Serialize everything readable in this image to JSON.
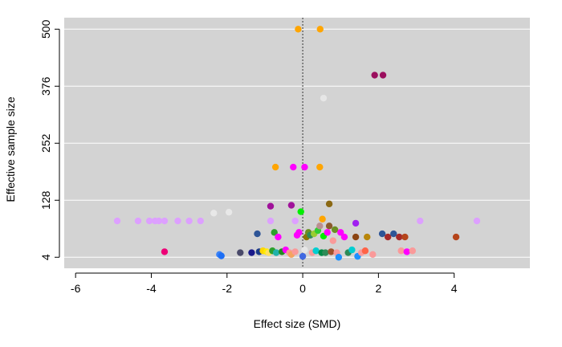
{
  "chart_data": {
    "type": "scatter",
    "title": "",
    "xlabel": "Effect size (SMD)",
    "ylabel": "Effective sample size",
    "xlim": [
      -6.3,
      6.0
    ],
    "ylim": [
      -20,
      525
    ],
    "xticks": [
      -6,
      -4,
      -2,
      0,
      2,
      4
    ],
    "xtick_labels": [
      "-6",
      "-4",
      "-2",
      "0",
      "2",
      "4"
    ],
    "yticks": [
      4,
      128,
      252,
      376,
      500
    ],
    "ytick_labels": [
      "4",
      "128",
      "252",
      "376",
      "500"
    ],
    "grid": "horizontal",
    "reference_line_x": 0,
    "panel_color": "#d3d3d3",
    "points": [
      {
        "x": -0.12,
        "y": 500,
        "color": "#ffa500"
      },
      {
        "x": 0.46,
        "y": 500,
        "color": "#ffa500"
      },
      {
        "x": 1.9,
        "y": 400,
        "color": "#9b0f5e"
      },
      {
        "x": 2.12,
        "y": 400,
        "color": "#9b0f5e"
      },
      {
        "x": 0.55,
        "y": 350,
        "color": "#e6e6e6"
      },
      {
        "x": -0.72,
        "y": 200,
        "color": "#ffa500"
      },
      {
        "x": -0.25,
        "y": 200,
        "color": "#ff00ff"
      },
      {
        "x": 0.05,
        "y": 200,
        "color": "#ff00ff"
      },
      {
        "x": 0.45,
        "y": 200,
        "color": "#ffa500"
      },
      {
        "x": -0.85,
        "y": 115,
        "color": "#a0129a"
      },
      {
        "x": -0.3,
        "y": 117,
        "color": "#a0129a"
      },
      {
        "x": -0.05,
        "y": 103,
        "color": "#00ee00"
      },
      {
        "x": 0.7,
        "y": 120,
        "color": "#8b6914"
      },
      {
        "x": 0.52,
        "y": 87,
        "color": "#ffa500"
      },
      {
        "x": -2.35,
        "y": 100,
        "color": "#e8e8e8"
      },
      {
        "x": -1.95,
        "y": 102,
        "color": "#e8e8e8"
      },
      {
        "x": -4.9,
        "y": 83,
        "color": "#dda0ff"
      },
      {
        "x": -4.35,
        "y": 83,
        "color": "#dda0ff"
      },
      {
        "x": -4.05,
        "y": 83,
        "color": "#dda0ff"
      },
      {
        "x": -3.9,
        "y": 83,
        "color": "#dda0ff"
      },
      {
        "x": -3.8,
        "y": 83,
        "color": "#dda0ff"
      },
      {
        "x": -3.65,
        "y": 83,
        "color": "#dda0ff"
      },
      {
        "x": -3.3,
        "y": 83,
        "color": "#dda0ff"
      },
      {
        "x": -3.0,
        "y": 83,
        "color": "#dda0ff"
      },
      {
        "x": -2.7,
        "y": 83,
        "color": "#dda0ff"
      },
      {
        "x": -0.85,
        "y": 83,
        "color": "#dda0ff"
      },
      {
        "x": -0.2,
        "y": 83,
        "color": "#dda0ff"
      },
      {
        "x": 3.1,
        "y": 83,
        "color": "#dda0ff"
      },
      {
        "x": 4.6,
        "y": 83,
        "color": "#dda0ff"
      },
      {
        "x": 1.4,
        "y": 78,
        "color": "#a020f0"
      },
      {
        "x": -3.65,
        "y": 16,
        "color": "#ee0077"
      },
      {
        "x": -2.2,
        "y": 10,
        "color": "#3b82f6"
      },
      {
        "x": -2.15,
        "y": 7,
        "color": "#1e6ff5"
      },
      {
        "x": -1.65,
        "y": 14,
        "color": "#4a4a6a"
      },
      {
        "x": -1.35,
        "y": 14,
        "color": "#1a1a8a"
      },
      {
        "x": -1.2,
        "y": 55,
        "color": "#2e5597"
      },
      {
        "x": -1.15,
        "y": 16,
        "color": "#1a3a8a"
      },
      {
        "x": -1.05,
        "y": 18,
        "color": "#ffd700"
      },
      {
        "x": -0.95,
        "y": 16,
        "color": "#ffee00"
      },
      {
        "x": -0.9,
        "y": 14,
        "color": "#ffe060"
      },
      {
        "x": -0.8,
        "y": 18,
        "color": "#2ca02c"
      },
      {
        "x": -0.75,
        "y": 58,
        "color": "#2ca02c"
      },
      {
        "x": -0.7,
        "y": 14,
        "color": "#20b2aa"
      },
      {
        "x": -0.65,
        "y": 48,
        "color": "#ff00ff"
      },
      {
        "x": -0.55,
        "y": 16,
        "color": "#228b22"
      },
      {
        "x": -0.45,
        "y": 20,
        "color": "#ff00ff"
      },
      {
        "x": -0.35,
        "y": 14,
        "color": "#fa9a9a"
      },
      {
        "x": -0.3,
        "y": 10,
        "color": "#f4a460"
      },
      {
        "x": -0.2,
        "y": 16,
        "color": "#fa9a9a"
      },
      {
        "x": -0.15,
        "y": 52,
        "color": "#ff00ff"
      },
      {
        "x": -0.1,
        "y": 58,
        "color": "#ff00ff"
      },
      {
        "x": 0.0,
        "y": 6,
        "color": "#4169e1"
      },
      {
        "x": 0.05,
        "y": 20,
        "color": "#e6e6e6"
      },
      {
        "x": 0.1,
        "y": 48,
        "color": "#8b7500"
      },
      {
        "x": 0.15,
        "y": 58,
        "color": "#6b8e23"
      },
      {
        "x": 0.2,
        "y": 52,
        "color": "#2e8b57"
      },
      {
        "x": 0.25,
        "y": 14,
        "color": "#fa9a9a"
      },
      {
        "x": 0.3,
        "y": 55,
        "color": "#9acd32"
      },
      {
        "x": 0.35,
        "y": 18,
        "color": "#00ced1"
      },
      {
        "x": 0.4,
        "y": 62,
        "color": "#32cd32"
      },
      {
        "x": 0.45,
        "y": 72,
        "color": "#bc8f8f"
      },
      {
        "x": 0.5,
        "y": 14,
        "color": "#008b45"
      },
      {
        "x": 0.55,
        "y": 50,
        "color": "#00ee00"
      },
      {
        "x": 0.6,
        "y": 14,
        "color": "#2e8b57"
      },
      {
        "x": 0.65,
        "y": 58,
        "color": "#ff00ff"
      },
      {
        "x": 0.7,
        "y": 72,
        "color": "#8b5a2b"
      },
      {
        "x": 0.75,
        "y": 16,
        "color": "#a0522d"
      },
      {
        "x": 0.8,
        "y": 40,
        "color": "#fa9a9a"
      },
      {
        "x": 0.85,
        "y": 64,
        "color": "#6b8e23"
      },
      {
        "x": 0.9,
        "y": 14,
        "color": "#fa9a9a"
      },
      {
        "x": 0.95,
        "y": 4,
        "color": "#1e90ff"
      },
      {
        "x": 1.0,
        "y": 58,
        "color": "#ff00ff"
      },
      {
        "x": 1.1,
        "y": 48,
        "color": "#ff00ff"
      },
      {
        "x": 1.2,
        "y": 14,
        "color": "#2e8b57"
      },
      {
        "x": 1.3,
        "y": 20,
        "color": "#00ced1"
      },
      {
        "x": 1.4,
        "y": 48,
        "color": "#8b4513"
      },
      {
        "x": 1.45,
        "y": 6,
        "color": "#1e90ff"
      },
      {
        "x": 1.55,
        "y": 14,
        "color": "#fa9a9a"
      },
      {
        "x": 1.65,
        "y": 18,
        "color": "#ff6347"
      },
      {
        "x": 1.7,
        "y": 48,
        "color": "#b8860b"
      },
      {
        "x": 1.85,
        "y": 10,
        "color": "#fa9a9a"
      },
      {
        "x": 2.1,
        "y": 55,
        "color": "#2e5597"
      },
      {
        "x": 2.25,
        "y": 48,
        "color": "#a52a2a"
      },
      {
        "x": 2.4,
        "y": 55,
        "color": "#2e5597"
      },
      {
        "x": 2.55,
        "y": 48,
        "color": "#a52a2a"
      },
      {
        "x": 2.6,
        "y": 18,
        "color": "#fa9a9a"
      },
      {
        "x": 2.7,
        "y": 48,
        "color": "#b5451b"
      },
      {
        "x": 2.75,
        "y": 16,
        "color": "#ff00ff"
      },
      {
        "x": 2.9,
        "y": 18,
        "color": "#fa9a9a"
      },
      {
        "x": 4.05,
        "y": 48,
        "color": "#b5451b"
      }
    ]
  }
}
